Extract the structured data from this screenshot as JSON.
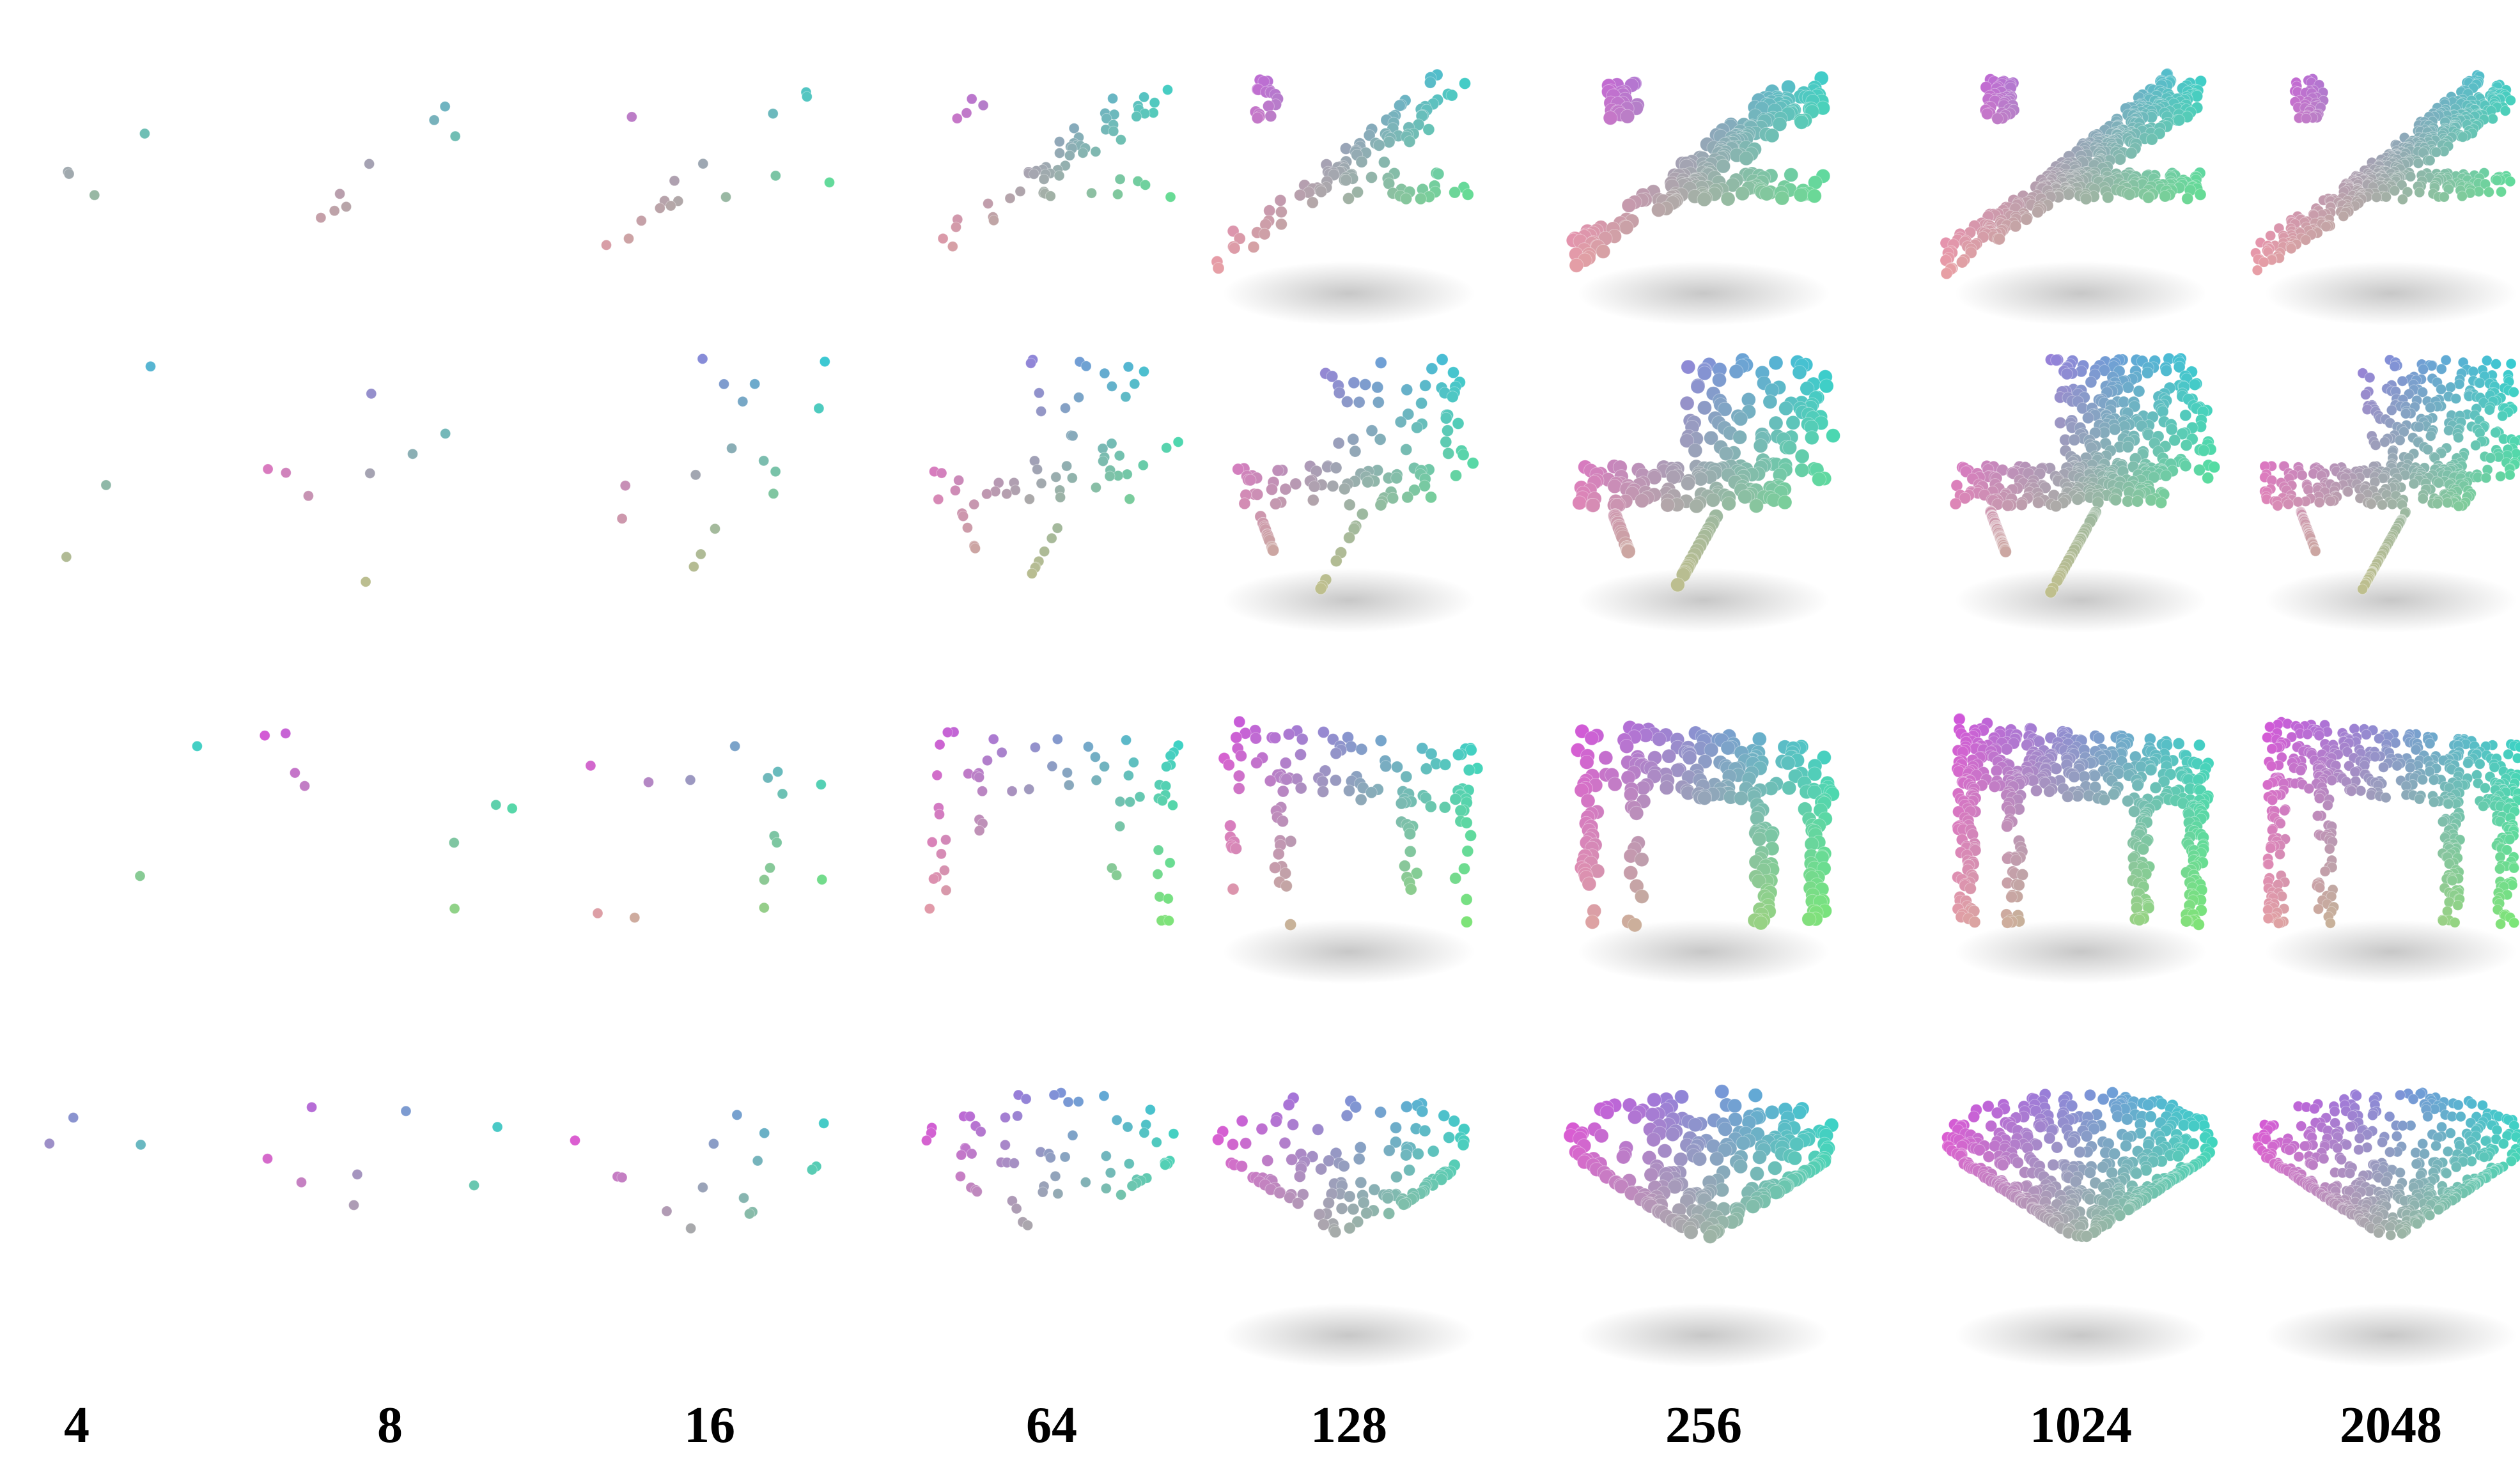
{
  "figure": {
    "column_labels": [
      "4",
      "8",
      "16",
      "64",
      "128",
      "256",
      "1024",
      "2048"
    ],
    "point_counts": [
      4,
      8,
      16,
      64,
      128,
      256,
      1024,
      2048
    ],
    "rows": [
      "airplane",
      "chair",
      "table",
      "bowl"
    ],
    "palette": {
      "magenta": "#e040e0",
      "cyan": "#20d8d8",
      "pink": "#f0a8a0",
      "green": "#80f060",
      "blue": "#3050e0",
      "red": "#e03030",
      "yellow": "#d8e030",
      "white": "#f4f4f4"
    },
    "background": "#ffffff"
  }
}
